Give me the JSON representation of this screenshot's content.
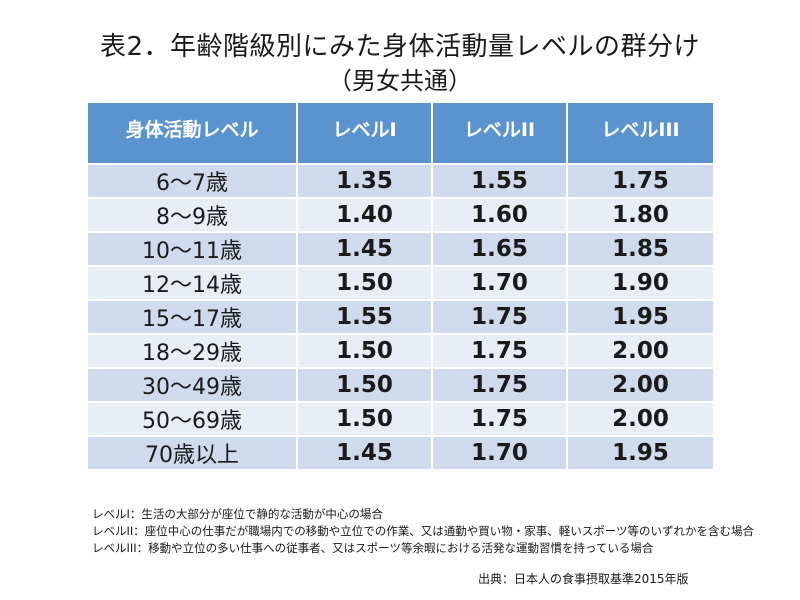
{
  "title": "表2．年齢階級別にみた身体活動量レベルの群分け",
  "subtitle": "（男女共通）",
  "table": {
    "headers": [
      "身体活動レベル",
      "レベルI",
      "レベルII",
      "レベルIII"
    ],
    "rows": [
      {
        "age": "6～7歳",
        "values": [
          "1.35",
          "1.55",
          "1.75"
        ]
      },
      {
        "age": "8～9歳",
        "values": [
          "1.40",
          "1.60",
          "1.80"
        ]
      },
      {
        "age": "10～11歳",
        "values": [
          "1.45",
          "1.65",
          "1.85"
        ]
      },
      {
        "age": "12～14歳",
        "values": [
          "1.50",
          "1.70",
          "1.90"
        ]
      },
      {
        "age": "15～17歳",
        "values": [
          "1.55",
          "1.75",
          "1.95"
        ]
      },
      {
        "age": "18～29歳",
        "values": [
          "1.50",
          "1.75",
          "2.00"
        ]
      },
      {
        "age": "30～49歳",
        "values": [
          "1.50",
          "1.75",
          "2.00"
        ]
      },
      {
        "age": "50～69歳",
        "values": [
          "1.50",
          "1.75",
          "2.00"
        ]
      },
      {
        "age": "70歳以上",
        "values": [
          "1.45",
          "1.70",
          "1.95"
        ]
      }
    ]
  },
  "notes": [
    "レベルI：生活の大部分が座位で静的な活動が中心の場合",
    "レベルII：座位中心の仕事だが職場内での移動や立位での作業、又は通勤や買い物・家事、軽いスポーツ等のいずれかを含む場合",
    "レベルIII：移動や立位の多い仕事への従事者、又はスポーツ等余暇における活発な運動習慣を持っている場合"
  ],
  "source": "出典：日本人の食事摂取基準2015年版"
}
